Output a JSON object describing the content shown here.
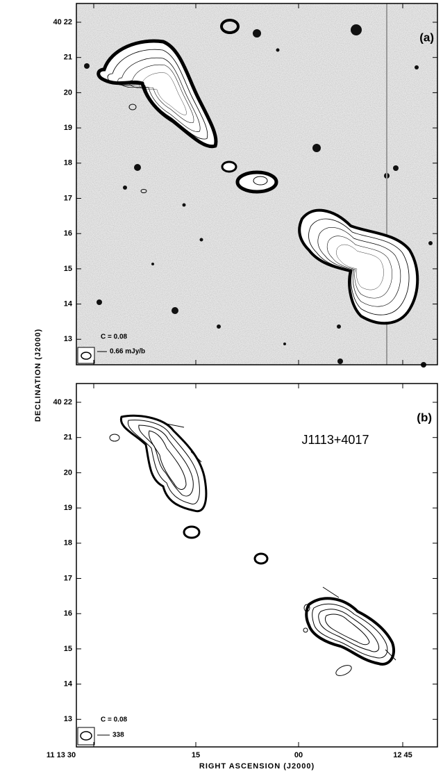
{
  "panels": [
    {
      "label": "(a)",
      "contour_level": "C = 0.08",
      "beam_scale": "0.66 mJy/b"
    },
    {
      "label": "(b)",
      "source_name": "J1113+4017",
      "contour_level": "C = 0.08",
      "beam_scale": "338"
    }
  ],
  "axes": {
    "y_label": "DECLINATION (J2000)",
    "x_label": "RIGHT ASCENSION (J2000)",
    "yticks": [
      "40 22",
      "21",
      "20",
      "19",
      "18",
      "17",
      "16",
      "15",
      "14",
      "13"
    ],
    "xticks": [
      "11 13 30",
      "15",
      "00",
      "12 45"
    ]
  }
}
